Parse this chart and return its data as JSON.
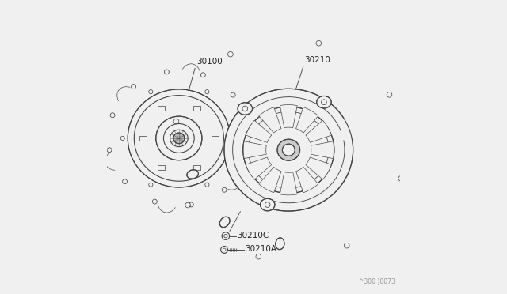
{
  "bg_color": "#f0f0f0",
  "line_color": "#444444",
  "line_width": 0.8,
  "part_30100_label": "30100",
  "part_30210_label": "30210",
  "part_30210c_label": "30210C",
  "part_30210a_label": "30210A",
  "watermark": "^300 )0073"
}
